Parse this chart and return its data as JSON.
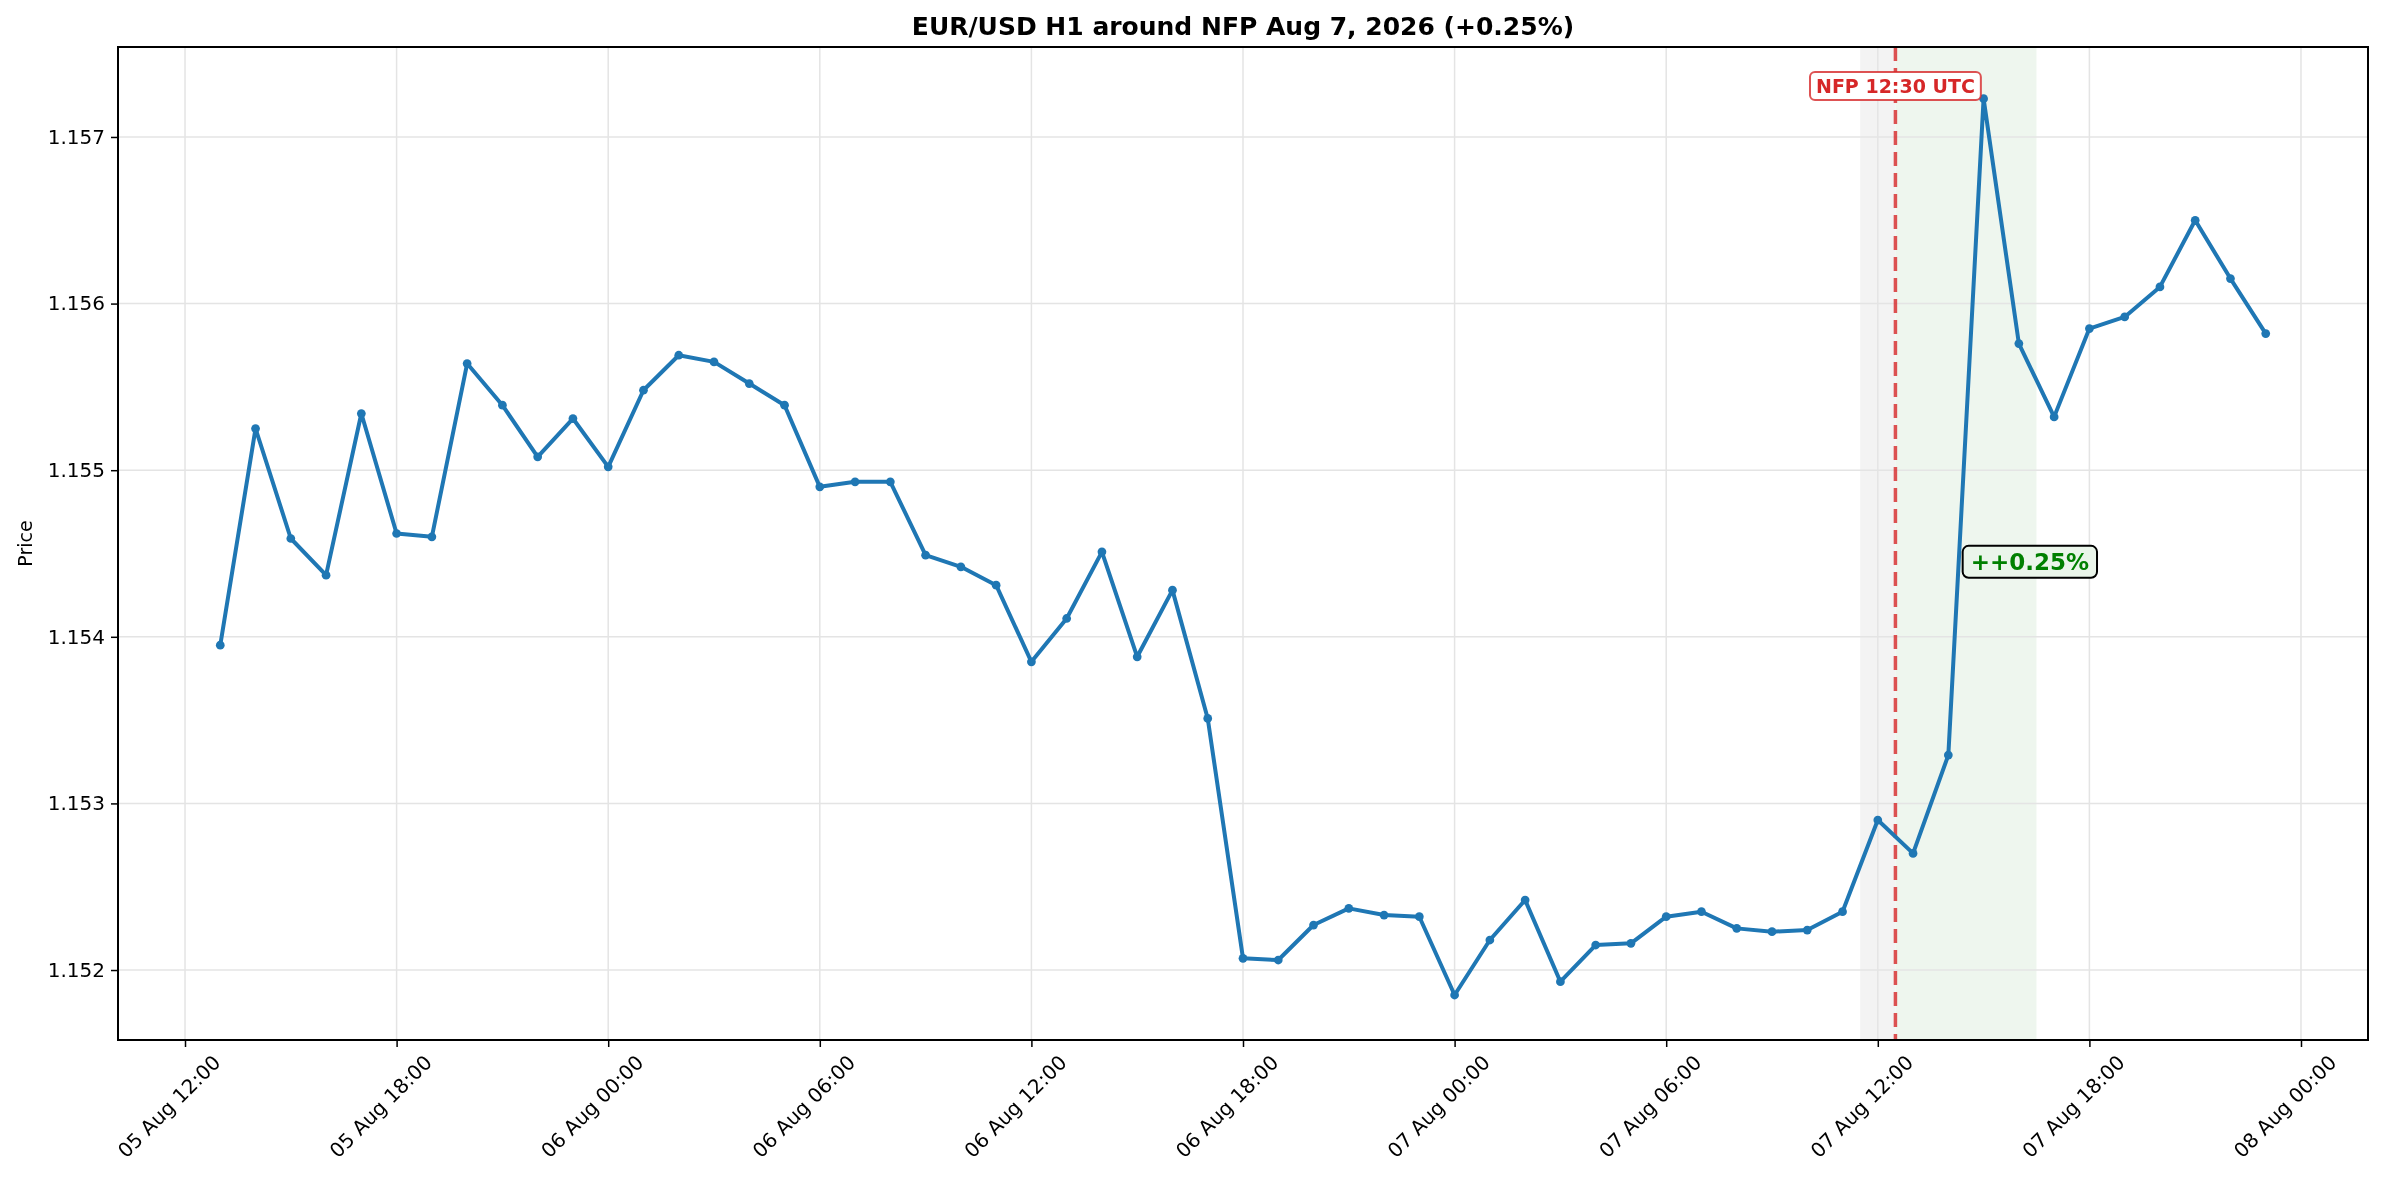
{
  "chart_data": {
    "type": "line",
    "title": "EUR/USD H1 around NFP Aug 7, 2026 (+0.25%)",
    "ylabel": "Price",
    "x": [
      "2026-08-05T13:00",
      "2026-08-05T14:00",
      "2026-08-05T15:00",
      "2026-08-05T16:00",
      "2026-08-05T17:00",
      "2026-08-05T18:00",
      "2026-08-05T19:00",
      "2026-08-05T20:00",
      "2026-08-05T21:00",
      "2026-08-05T22:00",
      "2026-08-05T23:00",
      "2026-08-06T00:00",
      "2026-08-06T01:00",
      "2026-08-06T02:00",
      "2026-08-06T03:00",
      "2026-08-06T04:00",
      "2026-08-06T05:00",
      "2026-08-06T06:00",
      "2026-08-06T07:00",
      "2026-08-06T08:00",
      "2026-08-06T09:00",
      "2026-08-06T10:00",
      "2026-08-06T11:00",
      "2026-08-06T12:00",
      "2026-08-06T13:00",
      "2026-08-06T14:00",
      "2026-08-06T15:00",
      "2026-08-06T16:00",
      "2026-08-06T17:00",
      "2026-08-06T18:00",
      "2026-08-06T19:00",
      "2026-08-06T20:00",
      "2026-08-06T21:00",
      "2026-08-06T22:00",
      "2026-08-06T23:00",
      "2026-08-07T00:00",
      "2026-08-07T01:00",
      "2026-08-07T02:00",
      "2026-08-07T03:00",
      "2026-08-07T04:00",
      "2026-08-07T05:00",
      "2026-08-07T06:00",
      "2026-08-07T07:00",
      "2026-08-07T08:00",
      "2026-08-07T09:00",
      "2026-08-07T10:00",
      "2026-08-07T11:00",
      "2026-08-07T12:00",
      "2026-08-07T13:00",
      "2026-08-07T14:00",
      "2026-08-07T15:00",
      "2026-08-07T16:00",
      "2026-08-07T17:00",
      "2026-08-07T18:00",
      "2026-08-07T19:00",
      "2026-08-07T20:00",
      "2026-08-07T21:00",
      "2026-08-07T22:00",
      "2026-08-07T23:00"
    ],
    "series": [
      {
        "color": "#1f77b4",
        "values": [
          1.15395,
          1.15525,
          1.15459,
          1.15437,
          1.15534,
          1.15462,
          1.1546,
          1.15564,
          1.15539,
          1.15508,
          1.15531,
          1.15502,
          1.15548,
          1.15569,
          1.15565,
          1.15552,
          1.15539,
          1.1549,
          1.15493,
          1.15493,
          1.15449,
          1.15442,
          1.15431,
          1.15385,
          1.15411,
          1.15451,
          1.15388,
          1.15428,
          1.15351,
          1.15207,
          1.15206,
          1.15227,
          1.15237,
          1.15233,
          1.15232,
          1.15185,
          1.15218,
          1.15242,
          1.15193,
          1.15215,
          1.15216,
          1.15232,
          1.15235,
          1.15225,
          1.15223,
          1.15224,
          1.15235,
          1.1529,
          1.1527,
          1.15329,
          1.15723,
          1.15576,
          1.15532,
          1.15585,
          1.15592,
          1.1561,
          1.1565,
          1.15615,
          1.15582
        ]
      }
    ],
    "xlim": [
      "2026-08-05T10:06",
      "2026-08-08T01:54"
    ],
    "xticks": [
      {
        "value": "2026-08-05T12:00",
        "label": "05 Aug 12:00"
      },
      {
        "value": "2026-08-05T18:00",
        "label": "05 Aug 18:00"
      },
      {
        "value": "2026-08-06T00:00",
        "label": "06 Aug 00:00"
      },
      {
        "value": "2026-08-06T06:00",
        "label": "06 Aug 06:00"
      },
      {
        "value": "2026-08-06T12:00",
        "label": "06 Aug 12:00"
      },
      {
        "value": "2026-08-06T18:00",
        "label": "06 Aug 18:00"
      },
      {
        "value": "2026-08-07T00:00",
        "label": "07 Aug 00:00"
      },
      {
        "value": "2026-08-07T06:00",
        "label": "07 Aug 06:00"
      },
      {
        "value": "2026-08-07T12:00",
        "label": "07 Aug 12:00"
      },
      {
        "value": "2026-08-07T18:00",
        "label": "07 Aug 18:00"
      },
      {
        "value": "2026-08-08T00:00",
        "label": "08 Aug 00:00"
      }
    ],
    "ylim": [
      1.15158,
      1.15754
    ],
    "yticks": [
      {
        "value": 1.152,
        "label": "1.152"
      },
      {
        "value": 1.153,
        "label": "1.153"
      },
      {
        "value": 1.154,
        "label": "1.154"
      },
      {
        "value": 1.155,
        "label": "1.155"
      },
      {
        "value": 1.156,
        "label": "1.156"
      },
      {
        "value": 1.157,
        "label": "1.157"
      }
    ],
    "bands": [
      {
        "axis": "x",
        "from": "2026-08-07T11:30",
        "to": "2026-08-07T12:30",
        "color": "#f3f3f3"
      },
      {
        "axis": "x",
        "from": "2026-08-07T12:30",
        "to": "2026-08-07T16:30",
        "color": "#eef6ee"
      }
    ],
    "ref_lines": [
      {
        "axis": "x",
        "value": "2026-08-07T12:30",
        "label": "NFP 12:30 UTC",
        "color": "#d62728",
        "line_style": "dashed"
      }
    ],
    "annotations": [
      {
        "text": "++0.25%",
        "x": "2026-08-07T14:21",
        "y": 1.15445
      }
    ],
    "grid": true,
    "marker": "circle",
    "line_style": "solid"
  }
}
